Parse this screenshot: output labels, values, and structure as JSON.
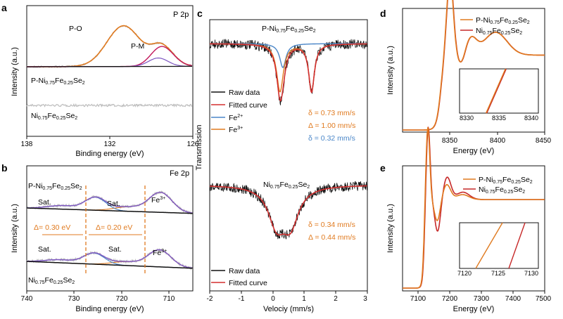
{
  "chart_data": [
    {
      "panel": "a",
      "type": "line",
      "corner_label": "P 2p",
      "xlabel": "Binding energy (eV)",
      "ylabel": "Intensity (a.u.)",
      "xlim": [
        138,
        126
      ],
      "x_reversed": true,
      "xticks": [
        138,
        132,
        126
      ],
      "annotations": [
        "P-O",
        "P-M"
      ],
      "series": [
        {
          "label": "P-Ni0.75Fe0.25Se2",
          "role": "raw",
          "color": "#bdbdbd",
          "peaks": [
            {
              "center": 131.0,
              "amplitude": 1.0,
              "width": 1.2
            },
            {
              "center": 128.0,
              "amplitude": 0.4,
              "width": 0.8
            }
          ]
        },
        {
          "label": "P-Ni0.75Fe0.25Se2",
          "role": "fit-P-O",
          "color": "#e07a1f",
          "peaks": [
            {
              "center": 131.0,
              "amplitude": 1.0,
              "width": 1.2
            }
          ]
        },
        {
          "label": "P-Ni0.75Fe0.25Se2",
          "role": "fit-P-M",
          "color": "#c2185b",
          "peaks": [
            {
              "center": 128.0,
              "amplitude": 0.4,
              "width": 0.8
            }
          ]
        },
        {
          "label": "Ni0.75Fe0.25Se2",
          "role": "raw",
          "color": "#bdbdbd",
          "peaks": []
        }
      ]
    },
    {
      "panel": "b",
      "type": "line",
      "corner_label": "Fe 2p",
      "xlabel": "Binding energy (eV)",
      "ylabel": "Intensity (a.u.)",
      "xlim": [
        740,
        705
      ],
      "x_reversed": true,
      "xticks": [
        740,
        730,
        720,
        710
      ],
      "annotations": [
        "Sat.",
        "Sat.",
        "Fe3+",
        "Δ= 0.30 eV",
        "Δ= 0.20 eV",
        "Sat.",
        "Sat.",
        "Fe3+"
      ],
      "reference_lines_eV": [
        726,
        712
      ],
      "series": [
        {
          "label": "P-Ni0.75Fe0.25Se2",
          "peaks_eV": [
            711.8,
            725.5,
            718.5,
            732.5
          ]
        },
        {
          "label": "Ni0.75Fe0.25Se2",
          "peaks_eV": [
            712.0,
            725.8,
            719.0,
            733.0
          ]
        }
      ]
    },
    {
      "panel": "c",
      "type": "line",
      "xlabel": "Velociy (mm/s)",
      "ylabel": "Transmission",
      "xlim": [
        -2,
        3
      ],
      "xticks": [
        -2,
        -1,
        0,
        1,
        2,
        3
      ],
      "top": {
        "label": "P-Ni0.75Fe0.25Se2",
        "legend": [
          "Raw data",
          "Fitted curve",
          "Fe2+",
          "Fe3+"
        ],
        "params": [
          {
            "text": "δ = 0.73 mm/s",
            "color": "#e07a1f"
          },
          {
            "text": "Δ = 1.00 mm/s",
            "color": "#e07a1f"
          },
          {
            "text": "δ = 0.32 mm/s",
            "color": "#4a86c8"
          }
        ],
        "components": [
          {
            "name": "Fe2+",
            "color": "#4a86c8",
            "dips_mm_s": [
              0.32
            ],
            "depth": 0.55
          },
          {
            "name": "Fe3+",
            "color": "#e07a1f",
            "dips_mm_s": [
              0.23,
              1.23
            ],
            "depth": 0.8
          }
        ]
      },
      "bottom": {
        "label": "Ni0.75Fe0.25Se2",
        "legend": [
          "Raw data",
          "Fitted curve"
        ],
        "params": [
          {
            "text": "δ = 0.34 mm/s",
            "color": "#e07a1f"
          },
          {
            "text": "Δ = 0.44 mm/s",
            "color": "#e07a1f"
          }
        ],
        "components": [
          {
            "name": "fit",
            "color": "#d32f2f",
            "dips_mm_s": [
              0.12,
              0.56
            ],
            "depth": 0.8
          }
        ]
      }
    },
    {
      "panel": "d",
      "type": "line",
      "xlabel": "Energy (eV)",
      "ylabel": "Intensity (a.u.)",
      "xlim": [
        8300,
        8450
      ],
      "xticks": [
        8350,
        8400,
        8450
      ],
      "inset_xticks": [
        8330,
        8335,
        8340
      ],
      "series": [
        {
          "name": "P-Ni0.75Fe0.25Se2",
          "color": "#e07a1f"
        },
        {
          "name": "Ni0.75Fe0.25Se2",
          "color": "#c62828"
        }
      ]
    },
    {
      "panel": "e",
      "type": "line",
      "xlabel": "Energy (eV)",
      "ylabel": "Intensity (a.u.)",
      "xlim": [
        7050,
        7500
      ],
      "xticks": [
        7100,
        7200,
        7300,
        7400,
        7500
      ],
      "inset_xticks": [
        7120,
        7125,
        7130
      ],
      "series": [
        {
          "name": "P-Ni0.75Fe0.25Se2",
          "color": "#e07a1f"
        },
        {
          "name": "Ni0.75Fe0.25Se2",
          "color": "#c62828"
        }
      ]
    }
  ],
  "text": {
    "a": "a",
    "b": "b",
    "c": "c",
    "d": "d",
    "e": "e",
    "a_corner": "P 2p",
    "b_corner": "Fe 2p",
    "a_PO": "P-O",
    "a_PM": "P-M",
    "a_xlabel": "Binding energy (eV)",
    "b_xlabel": "Binding energy (eV)",
    "ylabel_int": "Intensity (a.u.)",
    "c_xlabel": "Velociy (mm/s)",
    "c_ylabel": "Transmission",
    "de_xlabel": "Energy (eV)",
    "a_t1": "138",
    "a_t2": "132",
    "a_t3": "126",
    "b_t1": "740",
    "b_t2": "730",
    "b_t3": "720",
    "b_t4": "710",
    "c_t1": "-2",
    "c_t2": "-1",
    "c_t3": "0",
    "c_t4": "1",
    "c_t5": "2",
    "c_t6": "3",
    "d_t1": "8350",
    "d_t2": "8400",
    "d_t3": "8450",
    "d_i1": "8330",
    "d_i2": "8335",
    "d_i3": "8340",
    "e_t1": "7100",
    "e_t2": "7200",
    "e_t3": "7300",
    "e_t4": "7400",
    "e_t5": "7500",
    "e_i1": "7120",
    "e_i2": "7125",
    "e_i3": "7130",
    "sat": "Sat.",
    "fe3": "Fe",
    "fe2": "Fe",
    "sup3": "3+",
    "sup2": "2+",
    "d1": "Δ= 0.30 eV",
    "d2": "Δ= 0.20 eV",
    "raw": "Raw data",
    "fit": "Fitted curve",
    "c_p1": "δ = 0.73 mm/s",
    "c_p2": "Δ = 1.00 mm/s",
    "c_p3": "δ = 0.32 mm/s",
    "c_p4": "δ = 0.34 mm/s",
    "c_p5": "Δ = 0.44 mm/s",
    "pre": "P-Ni",
    "ni": "Ni",
    "s075": "0.75",
    "fe": "Fe",
    "s025": "0.25",
    "se": "Se",
    "s2": "2"
  },
  "colors": {
    "orange": "#e07a1f",
    "crimson": "#c62828",
    "blue": "#4a86c8",
    "gray": "#bdbdbd",
    "black": "#111111"
  }
}
